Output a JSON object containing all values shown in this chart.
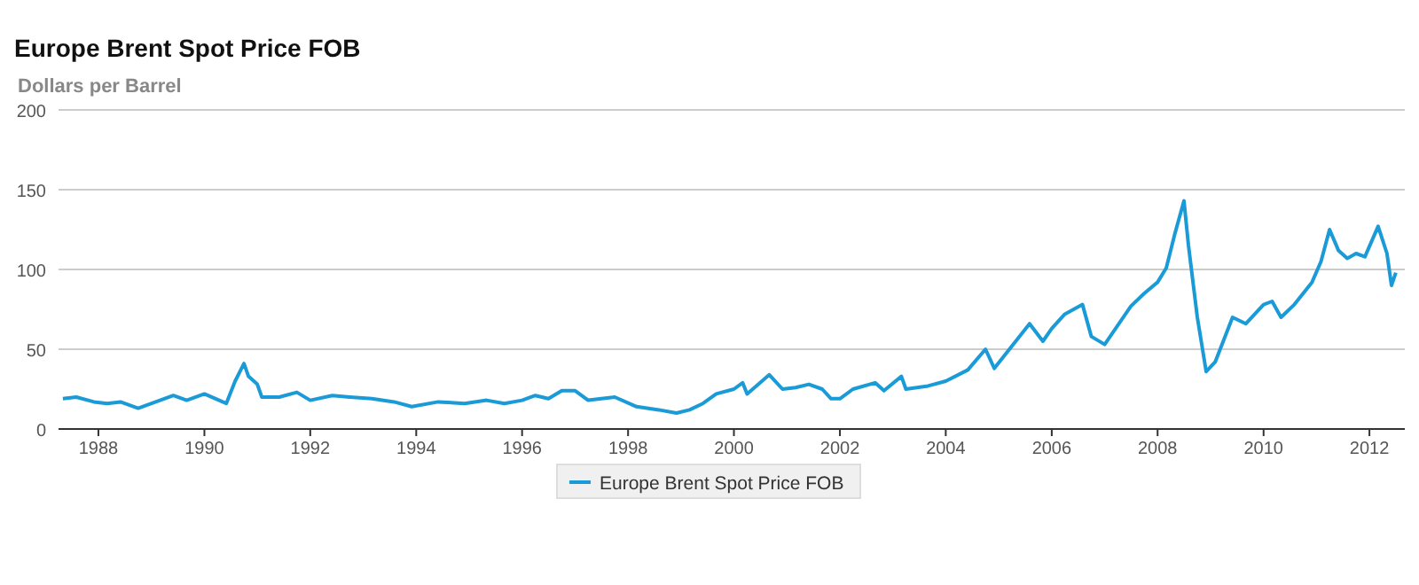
{
  "chart_data": {
    "type": "line",
    "title": "Europe Brent Spot Price FOB",
    "ylabel": "Dollars per Barrel",
    "x": [
      "1987-05",
      "1987-08",
      "1987-12",
      "1988-03",
      "1988-06",
      "1988-10",
      "1989-03",
      "1989-06",
      "1989-09",
      "1990-01",
      "1990-06",
      "1990-08",
      "1990-10",
      "1990-11",
      "1991-01",
      "1991-02",
      "1991-06",
      "1991-10",
      "1992-01",
      "1992-06",
      "1992-10",
      "1993-03",
      "1993-08",
      "1993-12",
      "1994-06",
      "1994-12",
      "1995-05",
      "1995-09",
      "1996-01",
      "1996-04",
      "1996-07",
      "1996-10",
      "1997-01",
      "1997-04",
      "1997-10",
      "1998-03",
      "1998-08",
      "1998-12",
      "1999-03",
      "1999-06",
      "1999-09",
      "2000-01",
      "2000-03",
      "2000-04",
      "2000-09",
      "2000-12",
      "2001-03",
      "2001-06",
      "2001-09",
      "2001-11",
      "2002-01",
      "2002-04",
      "2002-09",
      "2002-11",
      "2003-03",
      "2003-04",
      "2003-09",
      "2004-01",
      "2004-06",
      "2004-10",
      "2004-12",
      "2005-04",
      "2005-08",
      "2005-11",
      "2006-01",
      "2006-04",
      "2006-08",
      "2006-10",
      "2007-01",
      "2007-07",
      "2007-10",
      "2008-01",
      "2008-03",
      "2008-05",
      "2008-07",
      "2008-08",
      "2008-10",
      "2008-12",
      "2009-02",
      "2009-06",
      "2009-09",
      "2010-01",
      "2010-03",
      "2010-05",
      "2010-08",
      "2010-12",
      "2011-02",
      "2011-04",
      "2011-06",
      "2011-08",
      "2011-10",
      "2011-12",
      "2012-03",
      "2012-05",
      "2012-06",
      "2012-07"
    ],
    "series": [
      {
        "name": "Europe Brent Spot Price FOB",
        "color": "#1a9bd7",
        "values": [
          19,
          20,
          17,
          16,
          17,
          13,
          18,
          21,
          18,
          22,
          16,
          30,
          41,
          33,
          28,
          20,
          20,
          23,
          18,
          21,
          20,
          19,
          17,
          14,
          17,
          16,
          18,
          16,
          18,
          21,
          19,
          24,
          24,
          18,
          20,
          14,
          12,
          10,
          12,
          16,
          22,
          25,
          29,
          22,
          34,
          25,
          26,
          28,
          25,
          19,
          19,
          25,
          29,
          24,
          33,
          25,
          27,
          30,
          37,
          50,
          38,
          52,
          66,
          55,
          63,
          72,
          78,
          58,
          53,
          77,
          85,
          92,
          101,
          123,
          143,
          115,
          70,
          36,
          42,
          70,
          66,
          78,
          80,
          70,
          78,
          92,
          105,
          125,
          112,
          107,
          110,
          108,
          127,
          110,
          90,
          98
        ]
      }
    ],
    "xlim": [
      "1987-04",
      "2012-09"
    ],
    "xticks": [
      {
        "value": "1988",
        "label": "1988"
      },
      {
        "value": "1990",
        "label": "1990"
      },
      {
        "value": "1992",
        "label": "1992"
      },
      {
        "value": "1994",
        "label": "1994"
      },
      {
        "value": "1996",
        "label": "1996"
      },
      {
        "value": "1998",
        "label": "1998"
      },
      {
        "value": "2000",
        "label": "2000"
      },
      {
        "value": "2002",
        "label": "2002"
      },
      {
        "value": "2004",
        "label": "2004"
      },
      {
        "value": "2006",
        "label": "2006"
      },
      {
        "value": "2008",
        "label": "2008"
      },
      {
        "value": "2010",
        "label": "2010"
      },
      {
        "value": "2012",
        "label": "2012"
      }
    ],
    "ylim": [
      0,
      200
    ],
    "yticks": [
      0,
      50,
      100,
      150,
      200
    ],
    "grid": "y",
    "legend": "bottom",
    "marker": "none",
    "line_style": "solid"
  }
}
